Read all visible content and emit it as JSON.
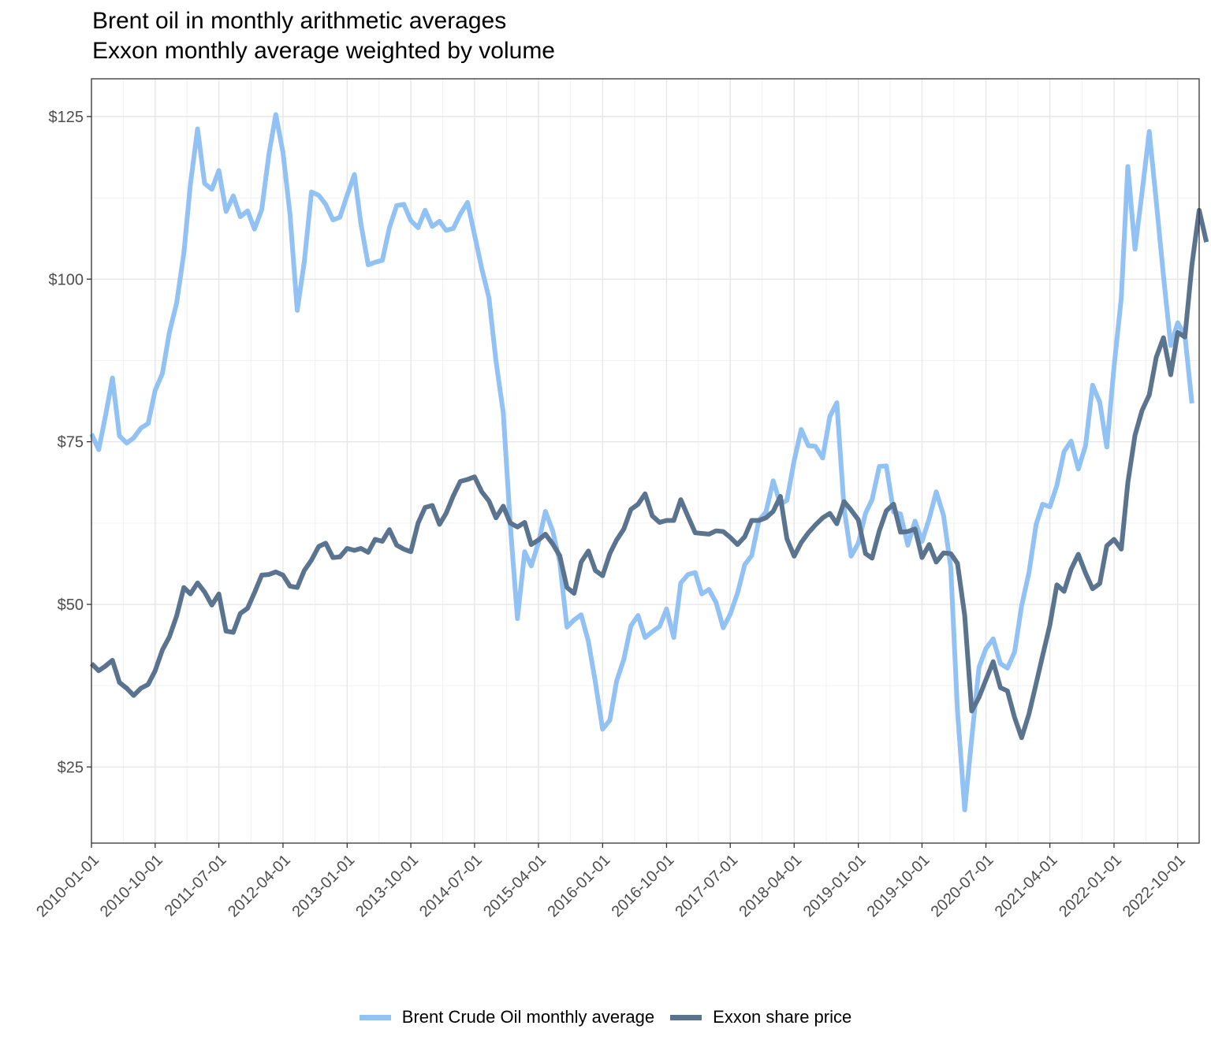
{
  "chart_data": {
    "type": "line",
    "title": "Brent oil in monthly arithmetic averages",
    "subtitle": "Exxon monthly average weighted by volume",
    "xlabel": "",
    "ylabel": "",
    "x_start": "2010-01-01",
    "x_end": "2023-01-01",
    "x_tick_labels": [
      "2010-01-01",
      "2010-10-01",
      "2011-07-01",
      "2012-04-01",
      "2013-01-01",
      "2013-10-01",
      "2014-07-01",
      "2015-04-01",
      "2016-01-01",
      "2016-10-01",
      "2017-07-01",
      "2018-04-01",
      "2019-01-01",
      "2019-10-01",
      "2020-07-01",
      "2021-04-01",
      "2022-01-01",
      "2022-10-01"
    ],
    "y_ticks": [
      "$25",
      "$50",
      "$75",
      "$100",
      "$125"
    ],
    "y_tick_values": [
      25,
      50,
      75,
      100,
      125
    ],
    "ylim": [
      13.3,
      130.8
    ],
    "grid": true,
    "legend_position": "bottom",
    "series": [
      {
        "name": "Brent Crude Oil monthly average",
        "color": "#92c1f4",
        "values": [
          76.2,
          73.8,
          78.8,
          84.8,
          75.9,
          74.8,
          75.6,
          77.1,
          77.8,
          82.9,
          85.5,
          91.8,
          96.3,
          104.0,
          114.6,
          123.1,
          114.7,
          113.8,
          116.7,
          110.4,
          112.8,
          109.6,
          110.5,
          107.7,
          110.7,
          119.3,
          125.3,
          119.5,
          110.0,
          95.2,
          102.6,
          113.4,
          112.9,
          111.5,
          109.1,
          109.5,
          112.9,
          116.1,
          108.5,
          102.2,
          102.6,
          102.9,
          107.9,
          111.3,
          111.5,
          109.0,
          107.9,
          110.6,
          108.1,
          108.9,
          107.5,
          107.8,
          110.0,
          111.8,
          106.8,
          101.6,
          97.1,
          87.4,
          79.5,
          62.3,
          47.8,
          58.1,
          55.9,
          59.5,
          64.3,
          61.3,
          56.6,
          46.5,
          47.6,
          48.4,
          44.3,
          38.0,
          30.8,
          32.2,
          38.2,
          41.6,
          46.7,
          48.3,
          44.9,
          45.8,
          46.6,
          49.3,
          44.9,
          53.3,
          54.6,
          54.9,
          51.6,
          52.3,
          50.3,
          46.4,
          48.5,
          51.7,
          56.1,
          57.5,
          62.9,
          64.2,
          69.0,
          65.4,
          66.0,
          72.1,
          76.9,
          74.4,
          74.3,
          72.5,
          78.9,
          81.0,
          64.8,
          57.4,
          59.4,
          64.0,
          66.1,
          71.2,
          71.3,
          64.2,
          63.9,
          59.1,
          62.8,
          59.7,
          63.2,
          67.3,
          63.7,
          55.7,
          33.7,
          18.4,
          29.4,
          40.3,
          43.2,
          44.7,
          40.9,
          40.2,
          42.7,
          49.8,
          54.8,
          62.3,
          65.4,
          65.0,
          68.3,
          73.5,
          75.1,
          70.8,
          74.4,
          83.7,
          81.1,
          74.2,
          86.5,
          97.1,
          117.3,
          104.6,
          113.3,
          122.7,
          111.9,
          100.5,
          89.8,
          93.3,
          91.4,
          80.9
        ]
      },
      {
        "name": "Exxon share price",
        "color": "#5a738f",
        "values": [
          40.9,
          39.8,
          40.5,
          41.4,
          38.0,
          37.1,
          36.0,
          37.1,
          37.7,
          39.8,
          43.0,
          45.0,
          48.2,
          52.6,
          51.6,
          53.3,
          51.9,
          49.9,
          51.6,
          45.9,
          45.7,
          48.6,
          49.4,
          51.8,
          54.5,
          54.6,
          55.0,
          54.5,
          52.8,
          52.6,
          55.2,
          56.8,
          58.9,
          59.4,
          57.2,
          57.3,
          58.6,
          58.3,
          58.6,
          58.0,
          60.0,
          59.7,
          61.5,
          59.1,
          58.5,
          58.1,
          62.5,
          64.9,
          65.2,
          62.3,
          64.0,
          66.7,
          68.9,
          69.2,
          69.6,
          67.3,
          65.9,
          63.3,
          65.1,
          62.5,
          61.9,
          62.6,
          59.2,
          59.9,
          60.8,
          59.3,
          57.5,
          52.6,
          51.7,
          56.5,
          58.2,
          55.2,
          54.4,
          57.8,
          59.9,
          61.6,
          64.6,
          65.4,
          67.0,
          63.6,
          62.6,
          62.9,
          62.9,
          66.1,
          63.5,
          61.0,
          60.9,
          60.8,
          61.3,
          61.2,
          60.3,
          59.2,
          60.4,
          62.9,
          62.9,
          63.3,
          64.3,
          66.6,
          60.1,
          57.4,
          59.5,
          61.0,
          62.2,
          63.3,
          64.0,
          62.4,
          65.8,
          64.5,
          63.0,
          57.8,
          57.1,
          61.3,
          64.4,
          65.4,
          61.1,
          61.2,
          61.6,
          57.2,
          59.2,
          56.5,
          57.9,
          57.8,
          56.3,
          48.3,
          33.6,
          35.7,
          38.4,
          41.2,
          37.2,
          36.7,
          32.6,
          29.5,
          33.1,
          37.8,
          42.1,
          46.8,
          53.0,
          52.0,
          55.4,
          57.7,
          54.8,
          52.4,
          53.2,
          59.0,
          60.0,
          58.5,
          68.7,
          76.0,
          79.8,
          82.2,
          88.0,
          91.0,
          85.3,
          91.8,
          91.1,
          102.2,
          110.6,
          105.7
        ]
      }
    ]
  }
}
